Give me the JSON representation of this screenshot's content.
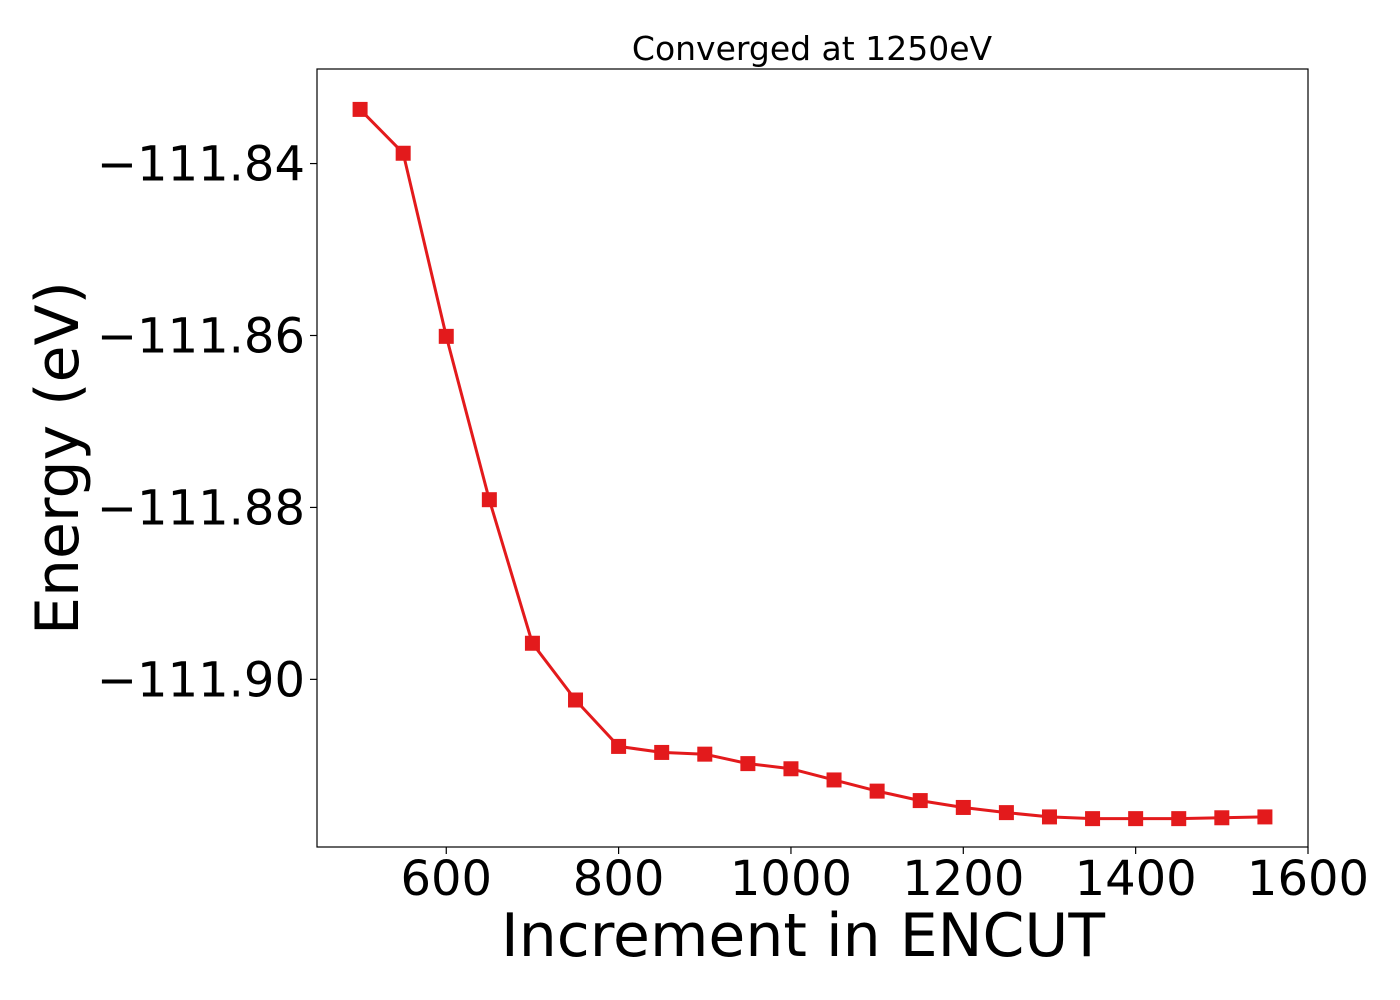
{
  "chart_data": {
    "type": "line",
    "title": "Converged at 1250eV",
    "xlabel": "Increment in ENCUT",
    "ylabel": "Energy (eV)",
    "xlim": [
      450,
      1600
    ],
    "ylim": [
      -111.9195,
      -111.829
    ],
    "xticks": [
      600,
      800,
      1000,
      1200,
      1400,
      1600
    ],
    "xtick_labels": [
      "600",
      "800",
      "1000",
      "1200",
      "1400",
      "1600"
    ],
    "yticks": [
      -111.84,
      -111.86,
      -111.88,
      -111.9
    ],
    "ytick_labels": [
      "−111.84",
      "−111.86",
      "−111.88",
      "−111.90"
    ],
    "grid": false,
    "series": [
      {
        "color": "#e31a1c",
        "marker": "square",
        "x": [
          500,
          550,
          600,
          650,
          700,
          750,
          800,
          850,
          900,
          950,
          1000,
          1050,
          1100,
          1150,
          1200,
          1250,
          1300,
          1350,
          1400,
          1450,
          1500,
          1550
        ],
        "y": [
          -111.8337,
          -111.8388,
          -111.8601,
          -111.8791,
          -111.8958,
          -111.9024,
          -111.9078,
          -111.9085,
          -111.9087,
          -111.9098,
          -111.9104,
          -111.9117,
          -111.913,
          -111.9141,
          -111.9149,
          -111.9155,
          -111.916,
          -111.9162,
          -111.9162,
          -111.9162,
          -111.9161,
          -111.916
        ]
      }
    ]
  }
}
